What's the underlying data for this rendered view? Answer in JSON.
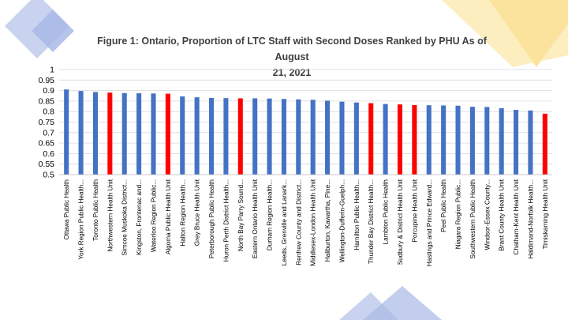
{
  "slide": {
    "decor_colors": {
      "blue_light": "#c9d3ef",
      "blue_mid": "#a9b8e6",
      "yellow": "#fbe39e",
      "yellow_light": "#fdeebf"
    }
  },
  "chart_data": {
    "type": "bar",
    "title": "Figure 1: Ontario, Proportion of LTC Staff with Second Doses Ranked by PHU As of August\n21, 2021",
    "xlabel": "",
    "ylabel": "",
    "ylim": [
      0.5,
      1
    ],
    "yticks": [
      "1",
      "0.95",
      "0.9",
      "0.85",
      "0.8",
      "0.75",
      "0.7",
      "0.65",
      "0.6",
      "0.55",
      "0.5"
    ],
    "grid": true,
    "legend": "none",
    "colors": {
      "default": "#4472c4",
      "highlight": "#ff0000"
    },
    "categories": [
      "Ottawa Public Health",
      "York Region Public Health...",
      "Toronto Public Health",
      "Northwestern Health Unit",
      "Simcoe Muskoka District...",
      "Kingston, Frontenac and...",
      "Waterloo Region Public...",
      "Algoma Public Health Unit",
      "Halton Region Health...",
      "Grey Bruce Health Unit",
      "Peterborough Public Health",
      "Huron Perth District Health...",
      "North Bay Parry Sound...",
      "Eastern Ontario Health Unit",
      "Durham Region Health...",
      "Leeds, Grenville and Lanark...",
      "Renfrew County and District...",
      "Middlesex-London Health Unit",
      "Haliburton, Kawartha, Pine...",
      "Wellington-Dufferin-Guelph...",
      "Hamilton Public Health...",
      "Thunder Bay District Health...",
      "Lambton Public Health",
      "Sudbury & District Health Unit",
      "Porcupine Health Unit",
      "Hastings and Prince Edward...",
      "Peel Public Health",
      "Niagara Region Public...",
      "Southwestern Public Health",
      "Windsor-Essex County...",
      "Brant County Health Unit",
      "Chatham-Kent Health Unit",
      "Haldimand-Norfolk Health...",
      "Timiskaming Health Unit"
    ],
    "values": [
      0.905,
      0.898,
      0.893,
      0.89,
      0.888,
      0.887,
      0.886,
      0.885,
      0.872,
      0.868,
      0.865,
      0.864,
      0.863,
      0.863,
      0.862,
      0.86,
      0.858,
      0.856,
      0.852,
      0.847,
      0.843,
      0.84,
      0.836,
      0.834,
      0.831,
      0.83,
      0.829,
      0.828,
      0.823,
      0.822,
      0.816,
      0.808,
      0.805,
      0.79
    ],
    "highlighted": [
      false,
      false,
      false,
      true,
      false,
      false,
      false,
      true,
      false,
      false,
      false,
      false,
      true,
      false,
      false,
      false,
      false,
      false,
      false,
      false,
      false,
      true,
      false,
      true,
      true,
      false,
      false,
      false,
      false,
      false,
      false,
      false,
      false,
      true
    ]
  }
}
